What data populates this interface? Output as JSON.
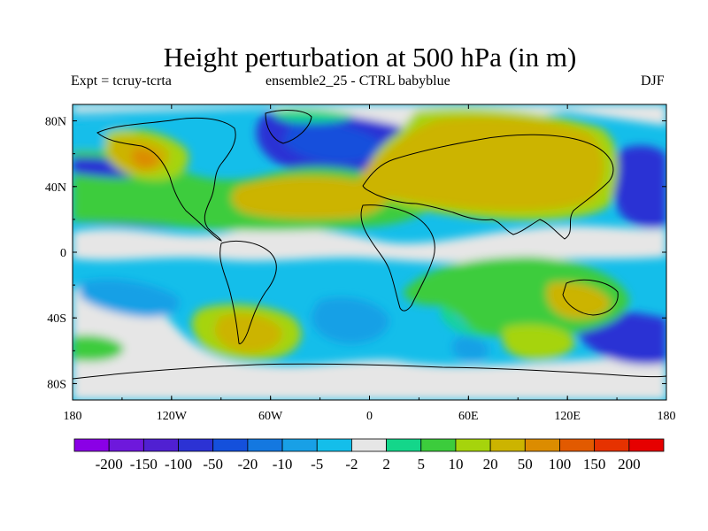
{
  "title": "Height perturbation at 500 hPa (in m)",
  "subtitle_left": "Expt = tcruy-tcrta",
  "subtitle_center": "ensemble2_25 - CTRL babyblue",
  "subtitle_right": "DJF",
  "lat_labels": [
    "80N",
    "40N",
    "0",
    "40S",
    "80S"
  ],
  "lat_values": [
    80,
    40,
    0,
    -40,
    -80
  ],
  "lon_labels": [
    "180",
    "120W",
    "60W",
    "0",
    "60E",
    "120E",
    "180"
  ],
  "lon_values": [
    -180,
    -120,
    -60,
    0,
    60,
    120,
    180
  ],
  "colorbar": {
    "labels": [
      "-200",
      "-150",
      "-100",
      "-50",
      "-20",
      "-10",
      "-5",
      "-2",
      "2",
      "5",
      "10",
      "20",
      "50",
      "100",
      "150",
      "200"
    ],
    "colors": [
      "#8a00e6",
      "#6e18dc",
      "#5020d2",
      "#2c32d4",
      "#1450dc",
      "#1478e0",
      "#18a0e6",
      "#14beea",
      "#e6e6e6",
      "#14d68a",
      "#3ccc3c",
      "#a6d40c",
      "#ccb400",
      "#dc8c00",
      "#e25a00",
      "#e63200",
      "#e60000"
    ]
  }
}
